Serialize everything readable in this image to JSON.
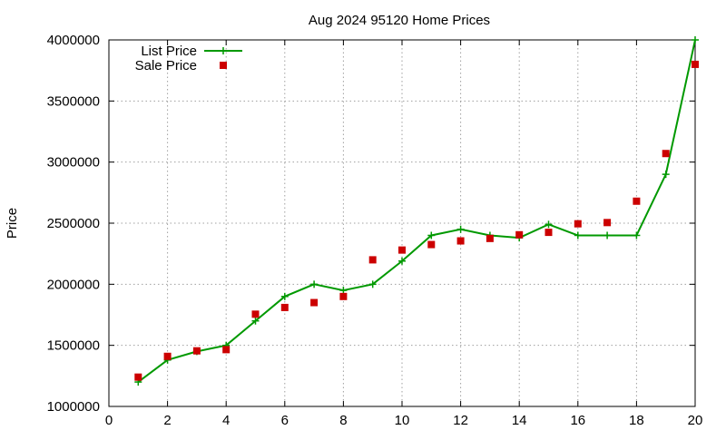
{
  "chart_data": {
    "type": "line",
    "title": "Aug 2024 95120 Home Prices",
    "xlabel": "",
    "ylabel": "Price",
    "xlim": [
      0,
      20
    ],
    "ylim": [
      1000000,
      4000000
    ],
    "x_ticks": [
      0,
      2,
      4,
      6,
      8,
      10,
      12,
      14,
      16,
      18,
      20
    ],
    "y_ticks": [
      1000000,
      1500000,
      2000000,
      2500000,
      3000000,
      3500000,
      4000000
    ],
    "x_tick_labels": [
      "0",
      "2",
      "4",
      "6",
      "8",
      "10",
      "12",
      "14",
      "16",
      "18",
      "20"
    ],
    "y_tick_labels": [
      "1000000",
      "1500000",
      "2000000",
      "2500000",
      "3000000",
      "3500000",
      "4000000"
    ],
    "grid": true,
    "legend_position": "top-left",
    "series": [
      {
        "name": "List Price",
        "style": "line-with-plus-markers",
        "color": "#009900",
        "x": [
          1,
          2,
          3,
          4,
          5,
          6,
          7,
          8,
          9,
          10,
          11,
          12,
          13,
          14,
          15,
          16,
          17,
          18,
          19,
          20
        ],
        "values": [
          1200000,
          1380000,
          1450000,
          1500000,
          1700000,
          1900000,
          2000000,
          1950000,
          2000000,
          2190000,
          2400000,
          2450000,
          2400000,
          2380000,
          2490000,
          2400000,
          2400000,
          2400000,
          2900000,
          4000000
        ]
      },
      {
        "name": "Sale Price",
        "style": "square-markers",
        "color": "#cc0000",
        "x": [
          1,
          2,
          3,
          4,
          5,
          6,
          7,
          8,
          9,
          10,
          11,
          12,
          13,
          14,
          15,
          16,
          17,
          18,
          19,
          20
        ],
        "values": [
          1240000,
          1410000,
          1455000,
          1465000,
          1755000,
          1810000,
          1850000,
          1900000,
          2200000,
          2280000,
          2325000,
          2355000,
          2375000,
          2405000,
          2425000,
          2495000,
          2505000,
          2680000,
          3070000,
          3800000
        ]
      }
    ]
  }
}
